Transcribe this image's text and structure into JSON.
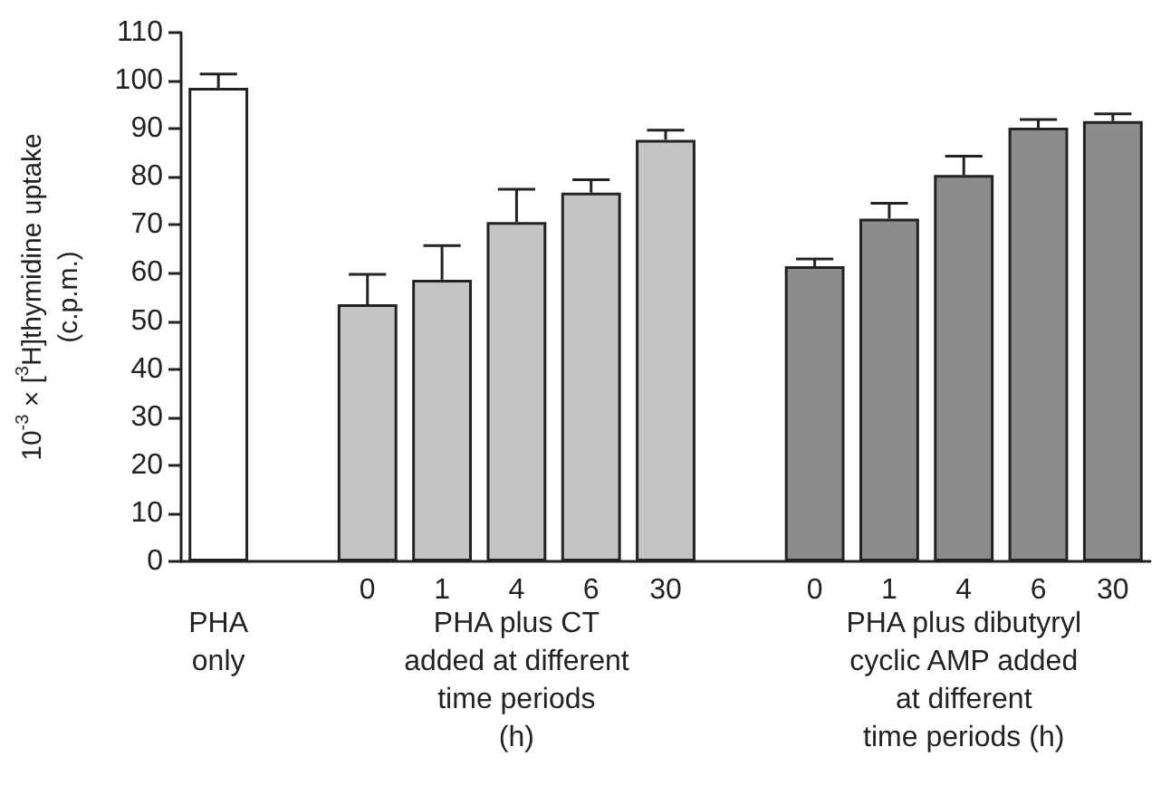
{
  "chart_data": {
    "type": "bar",
    "ylabel": "10$^{-3}$ × [$^{3}$H]thymidine uptake\n(c.p.m.)",
    "categories": [
      null,
      null,
      "0",
      "1",
      "4",
      "6",
      "30",
      null,
      "0",
      "1",
      "4",
      "6",
      "30"
    ],
    "values": [
      98.5,
      null,
      53.5,
      58.6,
      70.6,
      76.7,
      87.7,
      null,
      61.4,
      71.3,
      80.4,
      90.2,
      91.6
    ],
    "errors": [
      [
        98.5,
        101.4
      ],
      null,
      [
        53.5,
        59.7
      ],
      [
        58.6,
        65.7
      ],
      [
        70.6,
        77.4
      ],
      [
        76.7,
        79.4
      ],
      [
        87.7,
        89.7
      ],
      null,
      [
        61.4,
        62.9
      ],
      [
        71.3,
        74.5
      ],
      [
        80.4,
        84.3
      ],
      [
        90.2,
        91.9
      ],
      [
        91.6,
        93.1
      ]
    ],
    "colors": [
      "#ffffff",
      "#ffffff",
      "#c4c4c4",
      "#c4c4c4",
      "#c4c4c4",
      "#c4c4c4",
      "#c4c4c4",
      "#ffffff",
      "#8c8c8c",
      "#8c8c8c",
      "#8c8c8c",
      "#8c8c8c",
      "#8c8c8c"
    ],
    "ylim": [
      0,
      110
    ],
    "yticks": [
      0,
      10,
      20,
      30,
      40,
      50,
      60,
      70,
      80,
      90,
      100,
      110
    ],
    "annotations": [
      "PHA\nonly",
      "PHA plus CT\nadded at different\ntime periods\n(h)",
      "PHA plus dibutyryl\ncyclic AMP added\nat different\ntime periods (h)"
    ],
    "grid": false
  }
}
